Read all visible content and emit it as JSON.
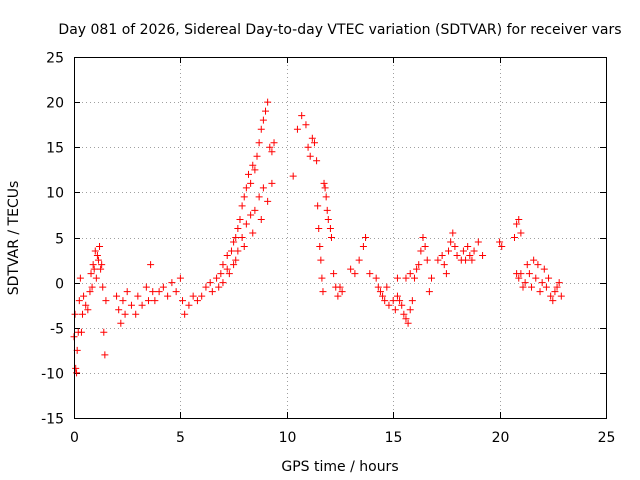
{
  "chart_data": {
    "type": "scatter",
    "title": "Day 081 of 2026, Sidereal Day-to-day VTEC variation (SDTVAR) for receiver vars",
    "xlabel": "GPS time / hours",
    "ylabel": "SDTVAR / TECUs",
    "xlim": [
      0,
      25
    ],
    "ylim": [
      -15,
      25
    ],
    "xticks": [
      0,
      5,
      10,
      15,
      20,
      25
    ],
    "yticks": [
      -15,
      -10,
      -5,
      0,
      5,
      10,
      15,
      20,
      25
    ],
    "grid": true,
    "marker": "+",
    "color": "#ff0000",
    "series": [
      {
        "name": "SDTVAR",
        "points": [
          [
            0.0,
            -6.0
          ],
          [
            0.05,
            -3.5
          ],
          [
            0.08,
            -9.5
          ],
          [
            0.12,
            -10.0
          ],
          [
            0.15,
            -7.5
          ],
          [
            0.2,
            -5.5
          ],
          [
            0.25,
            -2.0
          ],
          [
            0.3,
            0.5
          ],
          [
            0.35,
            -5.5
          ],
          [
            0.4,
            -3.5
          ],
          [
            0.45,
            -1.5
          ],
          [
            0.55,
            -2.5
          ],
          [
            0.65,
            -3.0
          ],
          [
            0.75,
            -1.0
          ],
          [
            0.8,
            1.0
          ],
          [
            0.85,
            -0.5
          ],
          [
            0.9,
            2.0
          ],
          [
            0.95,
            1.5
          ],
          [
            1.0,
            3.5
          ],
          [
            1.05,
            0.5
          ],
          [
            1.1,
            3.0
          ],
          [
            1.15,
            2.5
          ],
          [
            1.2,
            4.0
          ],
          [
            1.25,
            1.5
          ],
          [
            1.3,
            2.0
          ],
          [
            1.35,
            -0.5
          ],
          [
            1.4,
            -5.5
          ],
          [
            1.45,
            -8.0
          ],
          [
            1.5,
            -2.0
          ],
          [
            2.0,
            -1.5
          ],
          [
            2.1,
            -3.0
          ],
          [
            2.2,
            -4.5
          ],
          [
            2.3,
            -2.0
          ],
          [
            2.4,
            -3.5
          ],
          [
            2.5,
            -1.0
          ],
          [
            2.7,
            -2.5
          ],
          [
            2.9,
            -3.5
          ],
          [
            3.0,
            -1.5
          ],
          [
            3.2,
            -2.5
          ],
          [
            3.4,
            -0.5
          ],
          [
            3.5,
            -2.0
          ],
          [
            3.6,
            2.0
          ],
          [
            3.7,
            -1.0
          ],
          [
            3.8,
            -2.0
          ],
          [
            4.0,
            -1.0
          ],
          [
            4.2,
            -0.5
          ],
          [
            4.4,
            -1.5
          ],
          [
            4.6,
            0.0
          ],
          [
            4.8,
            -1.0
          ],
          [
            5.0,
            0.5
          ],
          [
            5.1,
            -2.0
          ],
          [
            5.2,
            -3.5
          ],
          [
            5.4,
            -2.5
          ],
          [
            5.6,
            -1.5
          ],
          [
            5.8,
            -2.0
          ],
          [
            6.0,
            -1.5
          ],
          [
            6.2,
            -0.5
          ],
          [
            6.4,
            0.0
          ],
          [
            6.5,
            -1.0
          ],
          [
            6.7,
            0.5
          ],
          [
            6.9,
            1.0
          ],
          [
            7.0,
            2.0
          ],
          [
            7.2,
            3.0
          ],
          [
            7.4,
            3.5
          ],
          [
            7.5,
            4.5
          ],
          [
            7.6,
            5.0
          ],
          [
            7.7,
            6.0
          ],
          [
            7.8,
            7.0
          ],
          [
            7.9,
            8.5
          ],
          [
            8.0,
            9.5
          ],
          [
            8.1,
            10.5
          ],
          [
            8.2,
            12.0
          ],
          [
            8.3,
            11.0
          ],
          [
            8.4,
            13.0
          ],
          [
            8.5,
            12.5
          ],
          [
            8.6,
            14.0
          ],
          [
            8.7,
            15.5
          ],
          [
            8.8,
            17.0
          ],
          [
            8.9,
            18.0
          ],
          [
            9.0,
            19.0
          ],
          [
            9.1,
            20.0
          ],
          [
            9.2,
            15.0
          ],
          [
            9.3,
            14.5
          ],
          [
            9.4,
            15.5
          ],
          [
            7.3,
            1.0
          ],
          [
            7.5,
            2.0
          ],
          [
            7.7,
            3.5
          ],
          [
            7.9,
            5.0
          ],
          [
            8.1,
            6.5
          ],
          [
            8.3,
            7.5
          ],
          [
            8.5,
            8.0
          ],
          [
            8.7,
            9.5
          ],
          [
            8.9,
            10.5
          ],
          [
            9.1,
            9.0
          ],
          [
            9.3,
            11.0
          ],
          [
            6.8,
            -0.5
          ],
          [
            7.0,
            0.0
          ],
          [
            7.2,
            1.5
          ],
          [
            7.6,
            2.5
          ],
          [
            8.0,
            4.0
          ],
          [
            8.4,
            5.5
          ],
          [
            8.8,
            7.0
          ],
          [
            10.3,
            11.8
          ],
          [
            10.5,
            17.0
          ],
          [
            10.7,
            18.5
          ],
          [
            10.9,
            17.5
          ],
          [
            11.0,
            15.0
          ],
          [
            11.1,
            14.0
          ],
          [
            11.2,
            16.0
          ],
          [
            11.3,
            15.5
          ],
          [
            11.4,
            13.5
          ],
          [
            11.45,
            8.5
          ],
          [
            11.5,
            6.0
          ],
          [
            11.55,
            4.0
          ],
          [
            11.6,
            2.5
          ],
          [
            11.65,
            0.5
          ],
          [
            11.7,
            -1.0
          ],
          [
            11.75,
            11.0
          ],
          [
            11.8,
            10.5
          ],
          [
            11.85,
            9.5
          ],
          [
            11.9,
            8.0
          ],
          [
            11.95,
            7.0
          ],
          [
            12.05,
            6.0
          ],
          [
            12.1,
            5.0
          ],
          [
            12.2,
            1.0
          ],
          [
            12.3,
            -0.5
          ],
          [
            12.4,
            -1.5
          ],
          [
            12.5,
            -0.5
          ],
          [
            12.6,
            -1.0
          ],
          [
            13.0,
            1.5
          ],
          [
            13.2,
            1.0
          ],
          [
            13.4,
            2.5
          ],
          [
            13.6,
            4.0
          ],
          [
            13.7,
            5.0
          ],
          [
            13.9,
            1.0
          ],
          [
            14.2,
            0.5
          ],
          [
            14.3,
            -0.5
          ],
          [
            14.4,
            -1.0
          ],
          [
            14.5,
            -1.5
          ],
          [
            14.6,
            -2.0
          ],
          [
            14.7,
            -0.5
          ],
          [
            14.8,
            -2.5
          ],
          [
            15.0,
            -2.0
          ],
          [
            15.1,
            -3.0
          ],
          [
            15.2,
            -1.5
          ],
          [
            15.3,
            -2.0
          ],
          [
            15.4,
            -2.5
          ],
          [
            15.5,
            -3.5
          ],
          [
            15.6,
            -4.0
          ],
          [
            15.7,
            -4.5
          ],
          [
            15.8,
            -3.0
          ],
          [
            15.9,
            -2.0
          ],
          [
            15.6,
            0.5
          ],
          [
            15.8,
            1.0
          ],
          [
            16.0,
            0.5
          ],
          [
            15.2,
            0.5
          ],
          [
            16.1,
            1.5
          ],
          [
            16.2,
            2.0
          ],
          [
            16.3,
            3.5
          ],
          [
            16.4,
            5.0
          ],
          [
            16.5,
            4.0
          ],
          [
            16.6,
            2.5
          ],
          [
            16.7,
            -1.0
          ],
          [
            16.8,
            0.5
          ],
          [
            17.1,
            2.5
          ],
          [
            17.3,
            3.0
          ],
          [
            17.4,
            2.0
          ],
          [
            17.5,
            1.0
          ],
          [
            17.6,
            3.5
          ],
          [
            17.7,
            4.5
          ],
          [
            17.8,
            5.5
          ],
          [
            17.9,
            4.0
          ],
          [
            18.0,
            3.0
          ],
          [
            18.2,
            2.5
          ],
          [
            18.3,
            3.5
          ],
          [
            18.4,
            2.5
          ],
          [
            18.5,
            4.0
          ],
          [
            18.6,
            3.0
          ],
          [
            18.7,
            2.5
          ],
          [
            18.8,
            3.5
          ],
          [
            19.0,
            4.5
          ],
          [
            19.2,
            3.0
          ],
          [
            20.0,
            4.5
          ],
          [
            20.1,
            4.0
          ],
          [
            20.7,
            5.0
          ],
          [
            20.8,
            6.5
          ],
          [
            20.9,
            7.0
          ],
          [
            21.0,
            5.5
          ],
          [
            20.8,
            1.0
          ],
          [
            20.9,
            0.5
          ],
          [
            21.0,
            1.0
          ],
          [
            21.1,
            -0.5
          ],
          [
            21.2,
            0.0
          ],
          [
            21.3,
            2.0
          ],
          [
            21.4,
            1.0
          ],
          [
            21.5,
            -0.5
          ],
          [
            21.6,
            2.5
          ],
          [
            21.7,
            0.5
          ],
          [
            21.8,
            2.0
          ],
          [
            21.9,
            -1.0
          ],
          [
            22.0,
            0.0
          ],
          [
            22.1,
            1.5
          ],
          [
            22.2,
            -0.5
          ],
          [
            22.3,
            0.5
          ],
          [
            22.4,
            -1.5
          ],
          [
            22.5,
            -2.0
          ],
          [
            22.6,
            -1.0
          ],
          [
            22.7,
            -0.5
          ],
          [
            22.8,
            0.0
          ],
          [
            22.9,
            -1.5
          ]
        ]
      }
    ]
  }
}
